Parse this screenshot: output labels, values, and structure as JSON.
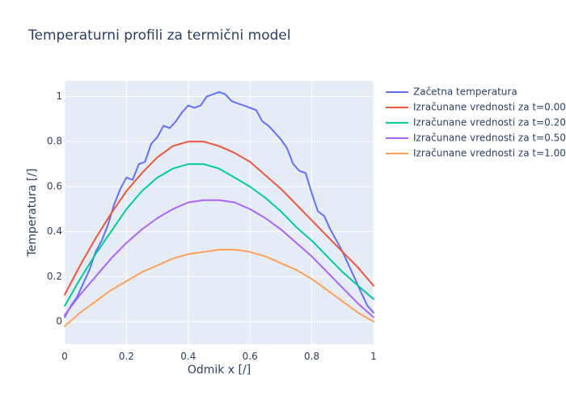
{
  "chart_data": {
    "type": "line",
    "title": "Temperaturni profili za termični model",
    "xlabel": "Odmik x [/]",
    "ylabel": "Temperatura [/]",
    "xlim": [
      0,
      1
    ],
    "ylim": [
      -0.1,
      1.07
    ],
    "xticks": [
      0,
      0.2,
      0.4,
      0.6,
      0.8,
      1
    ],
    "xtick_labels": [
      "0",
      "0.2",
      "0.4",
      "0.6",
      "0.8",
      "1"
    ],
    "yticks": [
      0,
      0.2,
      0.4,
      0.6,
      0.8,
      1
    ],
    "ytick_labels": [
      "0",
      "0.2",
      "0.4",
      "0.6",
      "0.8",
      "1"
    ],
    "grid": true,
    "legend_position": "top-right, outside plot",
    "series": [
      {
        "name": "Začetna temperatura",
        "color": "#636efa",
        "x": [
          0,
          0.02,
          0.04,
          0.06,
          0.08,
          0.1,
          0.12,
          0.14,
          0.16,
          0.18,
          0.2,
          0.22,
          0.24,
          0.26,
          0.28,
          0.3,
          0.32,
          0.34,
          0.36,
          0.38,
          0.4,
          0.42,
          0.44,
          0.46,
          0.48,
          0.5,
          0.52,
          0.54,
          0.56,
          0.58,
          0.6,
          0.62,
          0.64,
          0.66,
          0.68,
          0.7,
          0.72,
          0.74,
          0.76,
          0.78,
          0.8,
          0.82,
          0.84,
          0.86,
          0.88,
          0.9,
          0.92,
          0.94,
          0.96,
          0.98,
          1
        ],
        "y": [
          0.02,
          0.07,
          0.11,
          0.17,
          0.23,
          0.31,
          0.36,
          0.43,
          0.52,
          0.59,
          0.64,
          0.63,
          0.7,
          0.71,
          0.79,
          0.82,
          0.87,
          0.86,
          0.89,
          0.93,
          0.96,
          0.95,
          0.96,
          1.0,
          1.01,
          1.02,
          1.01,
          0.98,
          0.97,
          0.96,
          0.95,
          0.94,
          0.89,
          0.87,
          0.84,
          0.81,
          0.77,
          0.7,
          0.67,
          0.66,
          0.57,
          0.49,
          0.47,
          0.41,
          0.36,
          0.31,
          0.25,
          0.19,
          0.13,
          0.07,
          0.04
        ]
      },
      {
        "name": "Izračunane vrednosti za t=0.00",
        "color": "#ef553b",
        "x": [
          0,
          0.05,
          0.1,
          0.15,
          0.2,
          0.25,
          0.3,
          0.35,
          0.4,
          0.45,
          0.5,
          0.55,
          0.6,
          0.65,
          0.7,
          0.75,
          0.8,
          0.85,
          0.9,
          0.95,
          1
        ],
        "y": [
          0.12,
          0.25,
          0.37,
          0.48,
          0.58,
          0.66,
          0.73,
          0.78,
          0.8,
          0.8,
          0.78,
          0.75,
          0.71,
          0.65,
          0.59,
          0.52,
          0.45,
          0.38,
          0.31,
          0.24,
          0.16
        ]
      },
      {
        "name": "Izračunane vrednosti za t=0.20",
        "color": "#00cc96",
        "x": [
          0,
          0.05,
          0.1,
          0.15,
          0.2,
          0.25,
          0.3,
          0.35,
          0.4,
          0.45,
          0.5,
          0.55,
          0.6,
          0.65,
          0.7,
          0.75,
          0.8,
          0.85,
          0.9,
          0.95,
          1
        ],
        "y": [
          0.07,
          0.19,
          0.3,
          0.4,
          0.5,
          0.58,
          0.64,
          0.68,
          0.7,
          0.7,
          0.68,
          0.64,
          0.6,
          0.55,
          0.49,
          0.42,
          0.36,
          0.29,
          0.22,
          0.16,
          0.1
        ]
      },
      {
        "name": "Izračunane vrednosti za t=0.50",
        "color": "#ab63fa",
        "x": [
          0,
          0.05,
          0.1,
          0.15,
          0.2,
          0.25,
          0.3,
          0.35,
          0.4,
          0.45,
          0.5,
          0.55,
          0.6,
          0.65,
          0.7,
          0.75,
          0.8,
          0.85,
          0.9,
          0.95,
          1
        ],
        "y": [
          0.03,
          0.12,
          0.2,
          0.28,
          0.35,
          0.41,
          0.46,
          0.5,
          0.53,
          0.54,
          0.54,
          0.53,
          0.5,
          0.46,
          0.41,
          0.35,
          0.29,
          0.22,
          0.15,
          0.08,
          0.02
        ]
      },
      {
        "name": "Izračunane vrednosti za t=1.00",
        "color": "#ffa15a",
        "x": [
          0,
          0.05,
          0.1,
          0.15,
          0.2,
          0.25,
          0.3,
          0.35,
          0.4,
          0.45,
          0.5,
          0.55,
          0.6,
          0.65,
          0.7,
          0.75,
          0.8,
          0.85,
          0.9,
          0.95,
          1
        ],
        "y": [
          -0.02,
          0.04,
          0.09,
          0.14,
          0.18,
          0.22,
          0.25,
          0.28,
          0.3,
          0.31,
          0.32,
          0.32,
          0.31,
          0.29,
          0.26,
          0.23,
          0.19,
          0.14,
          0.09,
          0.04,
          0.0
        ]
      }
    ]
  }
}
